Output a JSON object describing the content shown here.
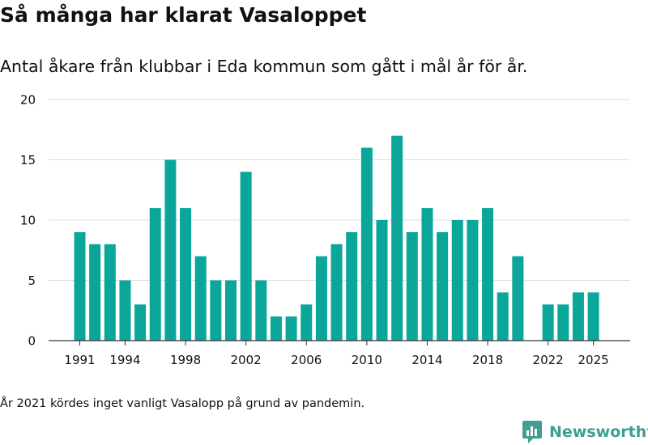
{
  "title": "Så många har klarat Vasaloppet",
  "subtitle": "Antal åkare från klubbar i Eda kommun som gått i mål år för år.",
  "footnote": "År 2021 kördes inget vanligt Vasalopp på grund av pandemin.",
  "brand": {
    "name": "Newsworthy",
    "icon": "newsworthy-logo-icon"
  },
  "colors": {
    "bar": "#0ba69a",
    "grid": "#dddddd",
    "axis": "#333333",
    "text": "#111111",
    "brand": "#3f9f93"
  },
  "chart_data": {
    "type": "bar",
    "x": [
      1991,
      1992,
      1993,
      1994,
      1995,
      1996,
      1997,
      1998,
      1999,
      2000,
      2001,
      2002,
      2003,
      2004,
      2005,
      2006,
      2007,
      2008,
      2009,
      2010,
      2011,
      2012,
      2013,
      2014,
      2015,
      2016,
      2017,
      2018,
      2019,
      2020,
      2021,
      2022,
      2023,
      2024,
      2025
    ],
    "values": [
      9,
      8,
      8,
      5,
      3,
      11,
      15,
      11,
      7,
      5,
      5,
      14,
      5,
      2,
      2,
      3,
      7,
      8,
      9,
      16,
      10,
      17,
      9,
      11,
      9,
      10,
      10,
      11,
      4,
      7,
      null,
      3,
      3,
      4,
      4
    ],
    "xticks": [
      1991,
      1994,
      1998,
      2002,
      2006,
      2010,
      2014,
      2018,
      2022,
      2025
    ],
    "yticks": [
      0,
      5,
      10,
      15,
      20
    ],
    "ylim": [
      0,
      20
    ],
    "grid": true,
    "legend": "none"
  }
}
